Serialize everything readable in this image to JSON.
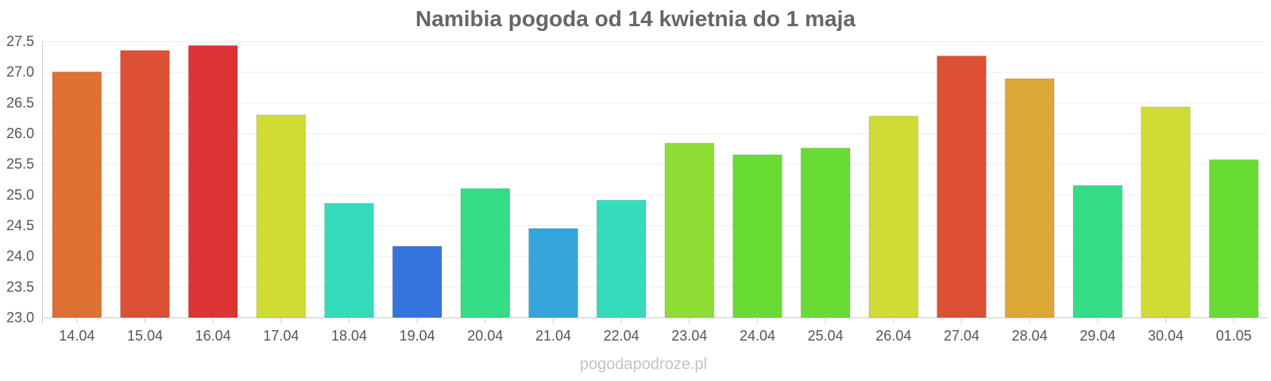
{
  "chart_data": {
    "type": "bar",
    "title": "Namibia pogoda od 14 kwietnia do 1 maja",
    "xlabel": "",
    "ylabel": "",
    "categories": [
      "14.04",
      "15.04",
      "16.04",
      "17.04",
      "18.04",
      "19.04",
      "20.04",
      "21.04",
      "22.04",
      "23.04",
      "24.04",
      "25.04",
      "26.04",
      "27.04",
      "28.04",
      "29.04",
      "30.04",
      "01.05"
    ],
    "values": [
      27.0,
      27.35,
      27.43,
      26.3,
      24.86,
      24.16,
      25.1,
      24.45,
      24.91,
      25.84,
      25.65,
      25.76,
      26.28,
      27.26,
      26.89,
      25.15,
      26.43,
      25.57
    ],
    "colors": [
      "#dd7033",
      "#dc5034",
      "#dc3434",
      "#cfdc34",
      "#34dcbb",
      "#3474dc",
      "#34dc86",
      "#34a6dc",
      "#34dcbb",
      "#8fdc34",
      "#69dc34",
      "#69dc34",
      "#cfdc34",
      "#dc5034",
      "#dca734",
      "#34dc86",
      "#cfdc34",
      "#69dc34"
    ],
    "ylim": [
      23.0,
      27.5
    ],
    "yticks": [
      "23.0",
      "23.5",
      "24.0",
      "24.5",
      "25.0",
      "25.5",
      "26.0",
      "26.5",
      "27.0",
      "27.5"
    ],
    "grid": true,
    "legend": "none"
  },
  "watermark": "pogodapodroze.pl"
}
